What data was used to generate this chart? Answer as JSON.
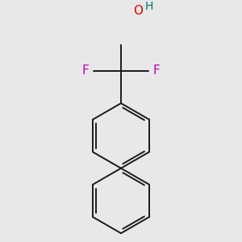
{
  "background_color": "#e8e8e8",
  "bond_color": "#1a1a1a",
  "bond_width": 1.4,
  "atom_colors": {
    "O": "#e00000",
    "H_O": "#007070",
    "F": "#bb00bb"
  },
  "font_size_atoms": 11.5,
  "figsize": [
    3.0,
    3.0
  ],
  "dpi": 100
}
